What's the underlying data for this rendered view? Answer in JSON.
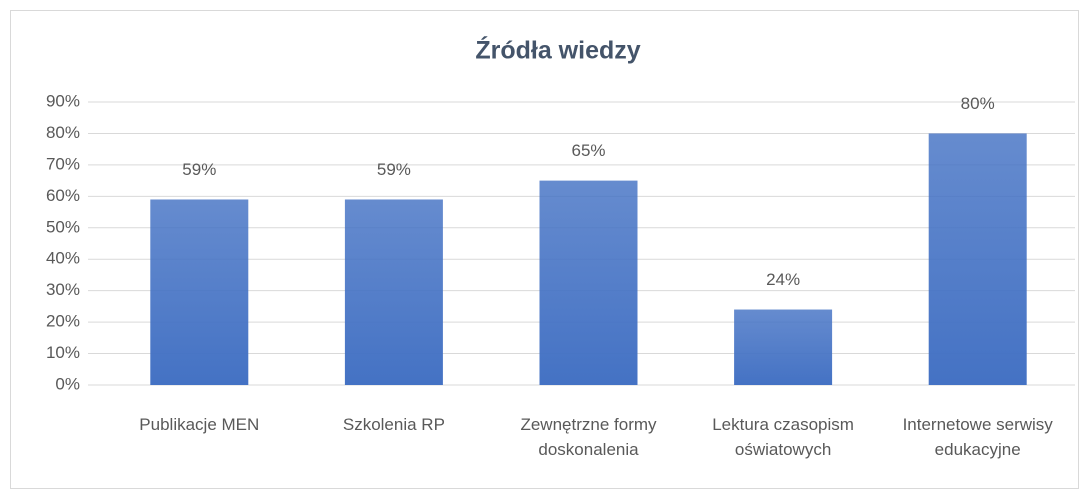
{
  "chart_data": {
    "type": "bar",
    "title": "Źródła wiedzy",
    "categories": [
      "Publikacje MEN",
      "Szkolenia RP",
      "Zewnętrzne formy doskonalenia",
      "Lektura czasopism oświatowych",
      "Internetowe serwisy edukacyjne"
    ],
    "values": [
      59,
      59,
      65,
      24,
      80
    ],
    "value_labels": [
      "59%",
      "59%",
      "65%",
      "24%",
      "80%"
    ],
    "color": "#4472c4",
    "ylim": [
      0,
      90
    ],
    "yticks": [
      {
        "value": 0,
        "label": "0%"
      },
      {
        "value": 10,
        "label": "10%"
      },
      {
        "value": 20,
        "label": "20%"
      },
      {
        "value": 30,
        "label": "30%"
      },
      {
        "value": 40,
        "label": "40%"
      },
      {
        "value": 50,
        "label": "50%"
      },
      {
        "value": 60,
        "label": "60%"
      },
      {
        "value": 70,
        "label": "70%"
      },
      {
        "value": 80,
        "label": "80%"
      },
      {
        "value": 90,
        "label": "90%"
      }
    ],
    "grid": true
  }
}
